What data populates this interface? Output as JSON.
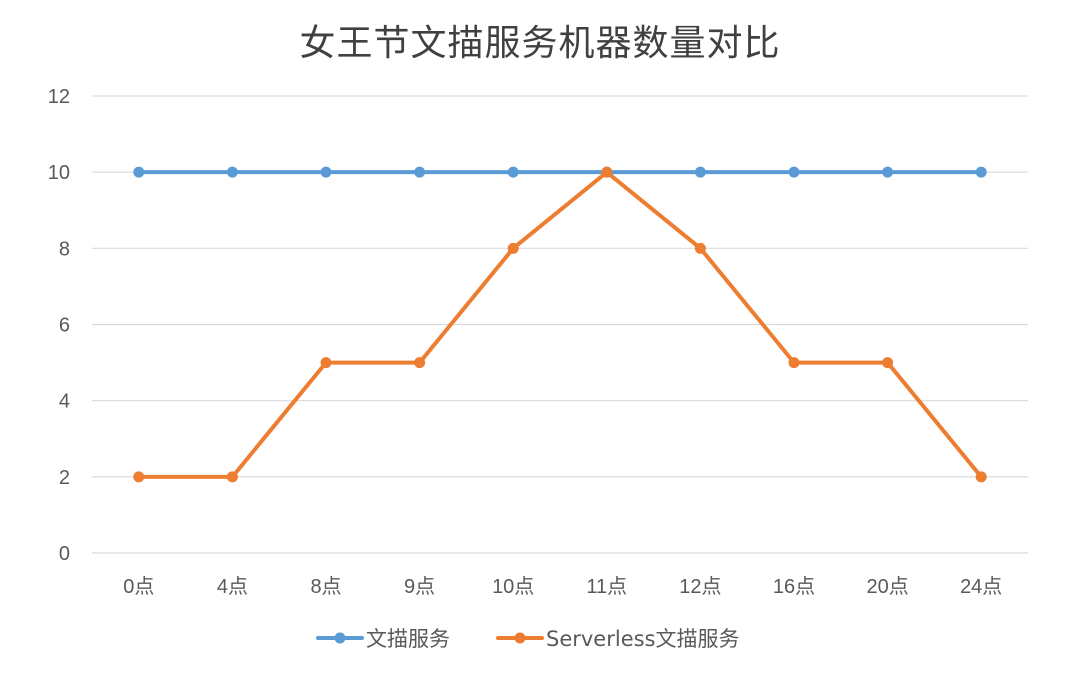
{
  "chart_data": {
    "type": "line",
    "title": "女王节文描服务机器数量对比",
    "categories": [
      "0点",
      "4点",
      "8点",
      "9点",
      "10点",
      "11点",
      "12点",
      "16点",
      "20点",
      "24点"
    ],
    "series": [
      {
        "name": "文描服务",
        "color": "#5B9BD5",
        "values": [
          10,
          10,
          10,
          10,
          10,
          10,
          10,
          10,
          10,
          10
        ]
      },
      {
        "name": "Serverless文描服务",
        "color": "#ED7D31",
        "values": [
          2,
          2,
          5,
          5,
          8,
          10,
          8,
          5,
          5,
          2
        ]
      }
    ],
    "ylim": [
      0,
      12
    ],
    "yticks": [
      0,
      2,
      4,
      6,
      8,
      10,
      12
    ],
    "grid": true,
    "legend_position": "bottom"
  }
}
